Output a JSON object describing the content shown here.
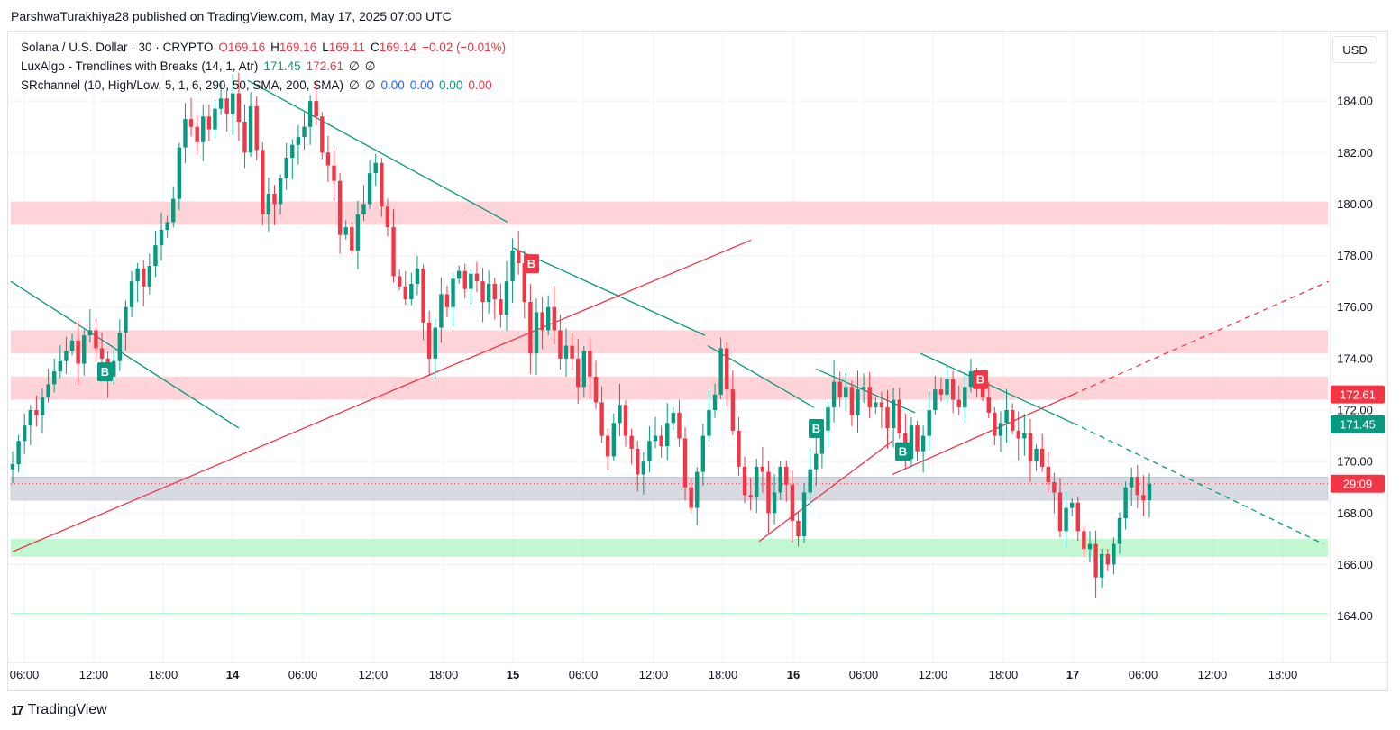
{
  "header": {
    "publisher": "ParshwaTurakhiya28 published on TradingView.com, May 17, 2025 07:00 UTC"
  },
  "legend": {
    "line1": {
      "symbol": "Solana / U.S. Dollar · 30 · CRYPTO",
      "open_label": "O",
      "open": "169.16",
      "high_label": "H",
      "high": "169.16",
      "low_label": "L",
      "low": "169.11",
      "close_label": "C",
      "close": "169.14",
      "change": "−0.02 (−0.01%)"
    },
    "line2": {
      "name": "LuxAlgo - Trendlines with Breaks (14, 1, Atr)",
      "v1": "171.45",
      "v2": "172.61",
      "v3": "∅",
      "v4": "∅"
    },
    "line3": {
      "name": "SRchannel (10, High/Low, 5, 1, 6, 290, 50, SMA, 200, SMA)",
      "v1": "∅",
      "v2": "∅",
      "v3": "0.00",
      "v4": "0.00",
      "v5": "0.00",
      "v6": "0.00"
    }
  },
  "currency": "USD",
  "footer": {
    "brand": "TradingView",
    "mark": "17"
  },
  "chart_data": {
    "type": "candlestick",
    "y_range": [
      162.2,
      186.7
    ],
    "y_ticks": [
      "184.00",
      "182.00",
      "180.00",
      "178.00",
      "176.00",
      "174.00",
      "172.00",
      "170.00",
      "168.00",
      "166.00",
      "164.00"
    ],
    "x_ticks": [
      "06:00",
      "12:00",
      "18:00",
      "14",
      "06:00",
      "12:00",
      "18:00",
      "15",
      "06:00",
      "12:00",
      "18:00",
      "16",
      "06:00",
      "12:00",
      "18:00",
      "17",
      "06:00",
      "12:00",
      "18:00"
    ],
    "price_labels": [
      {
        "text": "172.61",
        "value": 172.61,
        "color": "#f23645"
      },
      {
        "text": "171.45",
        "value": 171.45,
        "color": "#089981"
      },
      {
        "text": "29:09",
        "value": 169.14,
        "color": "#f23645"
      }
    ],
    "zones": [
      {
        "low": 179.2,
        "high": 180.1,
        "color": "#ffcdd2"
      },
      {
        "low": 174.2,
        "high": 175.1,
        "color": "#ffcdd2"
      },
      {
        "low": 172.4,
        "high": 173.3,
        "color": "#ffcdd2"
      },
      {
        "low": 168.5,
        "high": 169.4,
        "color": "#d1d4dc"
      },
      {
        "low": 166.3,
        "high": 167.0,
        "color": "#b9f6ca"
      }
    ],
    "support_line": 164.1,
    "closes": [
      169.9,
      170.8,
      171.4,
      172.0,
      171.8,
      172.5,
      173.0,
      173.5,
      173.9,
      174.3,
      174.7,
      173.8,
      174.9,
      175.1,
      174.4,
      174.0,
      173.3,
      173.9,
      175.0,
      176.0,
      177.0,
      177.5,
      176.8,
      177.6,
      178.4,
      179.0,
      179.3,
      180.2,
      182.2,
      183.3,
      183.0,
      182.4,
      183.4,
      182.9,
      183.7,
      184.1,
      183.5,
      184.3,
      183.2,
      182.0,
      183.8,
      182.1,
      179.6,
      180.4,
      180.0,
      181.0,
      181.8,
      182.3,
      182.6,
      183.0,
      184.0,
      183.4,
      182.0,
      181.5,
      180.9,
      178.8,
      179.1,
      178.2,
      179.6,
      180.0,
      181.2,
      181.6,
      179.9,
      179.1,
      177.2,
      176.8,
      176.3,
      176.9,
      177.5,
      175.4,
      174.0,
      175.2,
      176.5,
      176.0,
      177.1,
      177.4,
      176.7,
      177.3,
      177.0,
      176.2,
      176.9,
      176.3,
      175.7,
      177.0,
      178.2,
      177.7,
      176.2,
      174.2,
      175.8,
      175.1,
      176.0,
      175.1,
      174.0,
      174.5,
      174.0,
      172.9,
      174.3,
      173.3,
      172.3,
      171.0,
      170.2,
      171.5,
      172.2,
      171.0,
      170.5,
      169.5,
      170.0,
      170.8,
      171.0,
      170.6,
      171.5,
      171.9,
      170.9,
      169.0,
      168.2,
      169.6,
      171.0,
      172.0,
      172.6,
      174.4,
      172.8,
      171.2,
      169.8,
      168.7,
      168.6,
      169.8,
      169.6,
      168.0,
      168.8,
      169.8,
      169.1,
      167.7,
      167.1,
      168.8,
      169.7,
      170.3,
      171.2,
      172.1,
      173.1,
      172.5,
      172.9,
      171.8,
      172.8,
      172.9,
      172.1,
      172.3,
      172.1,
      171.3,
      172.4,
      171.1,
      170.1,
      171.4,
      170.4,
      171.0,
      172.0,
      172.8,
      172.6,
      173.2,
      172.4,
      172.1,
      172.9,
      173.5,
      173.0,
      172.5,
      171.9,
      171.0,
      171.5,
      172.0,
      171.2,
      170.9,
      171.1,
      170.0,
      170.5,
      169.8,
      169.2,
      168.8,
      167.3,
      168.2,
      168.4,
      167.3,
      166.6,
      166.8,
      165.5,
      166.4,
      166.0,
      166.8,
      167.8,
      169.0,
      169.4,
      168.7,
      168.5,
      169.14
    ]
  }
}
